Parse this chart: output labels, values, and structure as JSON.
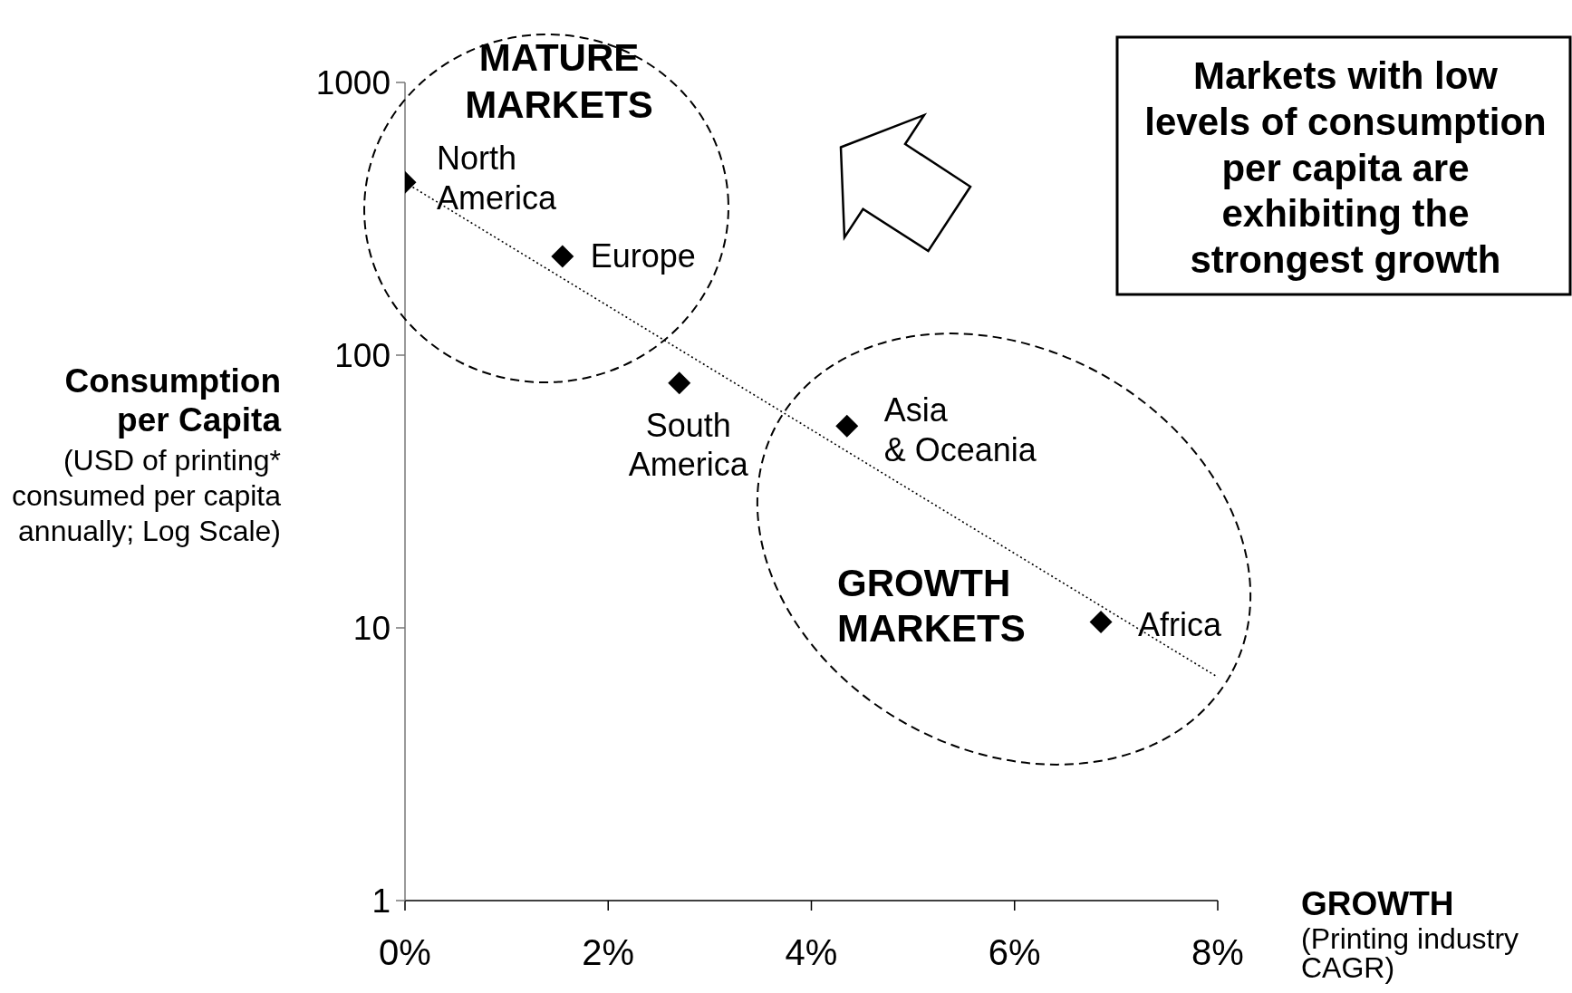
{
  "chart_data": {
    "type": "scatter",
    "xlabel": "GROWTH\n(Printing industry\nCAGR)",
    "ylabel": "Consumption\nper Capita\n(USD of printing*\nconsumed per capita\nannually; Log Scale)",
    "xlim": [
      0,
      8
    ],
    "xticks": [
      {
        "value": 0,
        "label": "0%"
      },
      {
        "value": 2,
        "label": "2%"
      },
      {
        "value": 4,
        "label": "4%"
      },
      {
        "value": 6,
        "label": "6%"
      },
      {
        "value": 8,
        "label": "8%"
      }
    ],
    "ylim": [
      1,
      1000
    ],
    "yticks": [
      1,
      10,
      100,
      1000
    ],
    "log": "y",
    "series": [
      {
        "color": "#000000",
        "marker": "diamond",
        "x": [
          0,
          1.55,
          2.7,
          4.35,
          6.85
        ],
        "values": [
          430,
          230,
          79,
          55,
          10.5
        ]
      },
      {
        "type": "line",
        "color": "#000000",
        "line_style": "dotted",
        "marker": "none",
        "x": [
          0,
          8
        ],
        "values": [
          430,
          6.6
        ]
      }
    ],
    "annotations": [
      "MATURE\nMARKETS",
      "GROWTH\nMARKETS",
      "Markets with low\nlevels of consumption\nper capita are\nexhibiting the\nstrongest growth",
      {
        "text": "North\nAmerica",
        "x": 0,
        "y": 430
      },
      {
        "text": "Europe",
        "x": 1.55,
        "y": 230
      },
      {
        "text": "South\nAmerica",
        "x": 2.7,
        "y": 79
      },
      {
        "text": "Asia\n& Oceania",
        "x": 4.35,
        "y": 55
      },
      {
        "text": "Africa",
        "x": 6.85,
        "y": 10.5
      }
    ]
  }
}
